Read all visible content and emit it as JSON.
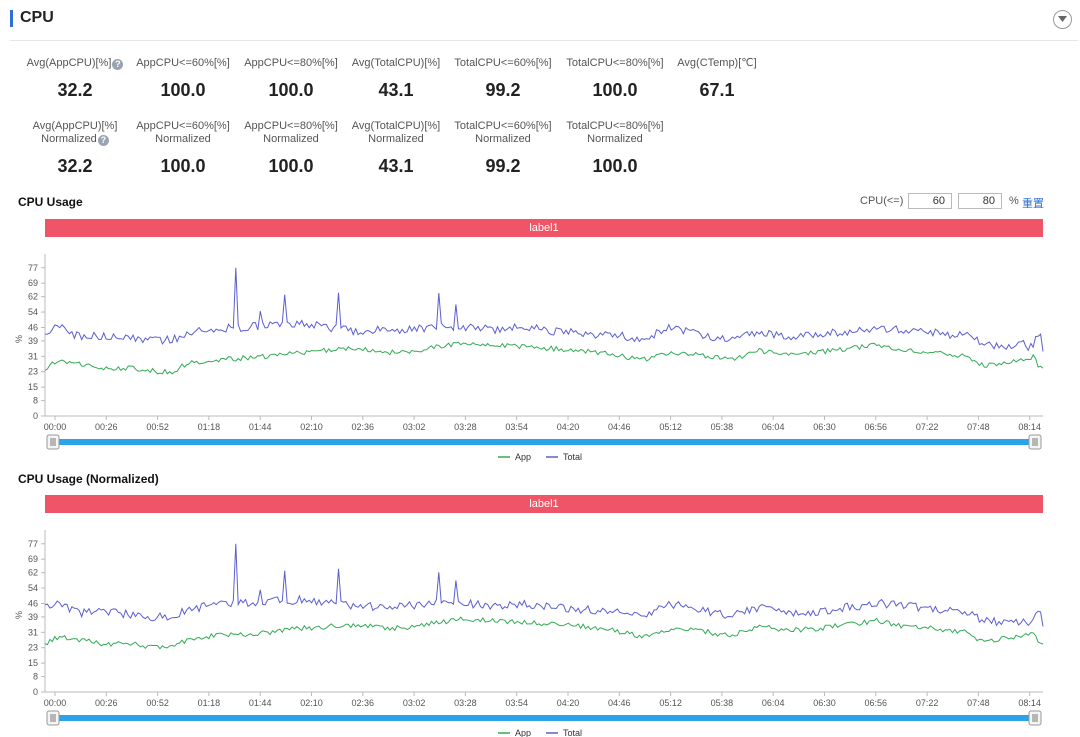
{
  "header": {
    "title": "CPU"
  },
  "stats_row1": [
    {
      "label": "Avg(AppCPU)[%]",
      "help": true,
      "value": "32.2"
    },
    {
      "label": "AppCPU<=60%[%]",
      "value": "100.0"
    },
    {
      "label": "AppCPU<=80%[%]",
      "value": "100.0"
    },
    {
      "label": "Avg(TotalCPU)[%]",
      "value": "43.1"
    },
    {
      "label": "TotalCPU<=60%[%]",
      "value": "99.2"
    },
    {
      "label": "TotalCPU<=80%[%]",
      "value": "100.0"
    },
    {
      "label": "Avg(CTemp)[℃]",
      "value": "67.1"
    }
  ],
  "stats_row2": [
    {
      "label": "Avg(AppCPU)[%]",
      "label2": "Normalized",
      "help": true,
      "value": "32.2"
    },
    {
      "label": "AppCPU<=60%[%]",
      "label2": "Normalized",
      "value": "100.0"
    },
    {
      "label": "AppCPU<=80%[%]",
      "label2": "Normalized",
      "value": "100.0"
    },
    {
      "label": "Avg(TotalCPU)[%]",
      "label2": "Normalized",
      "value": "43.1"
    },
    {
      "label": "TotalCPU<=60%[%]",
      "label2": "Normalized",
      "value": "99.2"
    },
    {
      "label": "TotalCPU<=80%[%]",
      "label2": "Normalized",
      "value": "100.0"
    }
  ],
  "help_glyph": "?",
  "threshold": {
    "label": "CPU(<=)",
    "value1": "60",
    "value2": "80",
    "unit": "%",
    "reset_label": "重置"
  },
  "colors": {
    "app": "#33aa55",
    "total": "#5a5fcf",
    "band": "#ef5566",
    "slider": "#2aa3e8",
    "accent": "#2d6fd6"
  },
  "chart_data": [
    {
      "type": "line",
      "title": "CPU Usage",
      "band_label": "label1",
      "ylabel": "%",
      "ylim": [
        0,
        80
      ],
      "y_ticks": [
        0,
        8,
        15,
        23,
        31,
        39,
        46,
        54,
        62,
        69,
        77
      ],
      "x_ticks": [
        "00:00",
        "00:26",
        "00:52",
        "01:18",
        "01:44",
        "02:10",
        "02:36",
        "03:02",
        "03:28",
        "03:54",
        "04:20",
        "04:46",
        "05:12",
        "05:38",
        "06:04",
        "06:30",
        "06:56",
        "07:22",
        "07:48",
        "08:14"
      ],
      "x_range_seconds": [
        0,
        510
      ],
      "legend": [
        "App",
        "Total"
      ],
      "series": [
        {
          "name": "App",
          "x": [
            0,
            8,
            18,
            30,
            44,
            58,
            66,
            72,
            85,
            100,
            115,
            130,
            145,
            160,
            175,
            190,
            200,
            215,
            230,
            245,
            260,
            275,
            290,
            305,
            320,
            335,
            350,
            365,
            380,
            395,
            410,
            425,
            440,
            455,
            470,
            480,
            490,
            500,
            502,
            505,
            508,
            510
          ],
          "values": [
            25,
            29,
            27,
            25,
            25,
            23,
            23,
            27,
            29,
            30,
            31,
            33,
            34,
            35,
            33,
            34,
            36,
            38,
            37,
            36,
            35,
            34,
            32,
            29,
            33,
            32,
            29,
            34,
            32,
            33,
            35,
            37,
            34,
            33,
            31,
            26,
            28,
            29,
            30,
            31,
            25,
            26
          ]
        },
        {
          "name": "Total",
          "x": [
            0,
            8,
            18,
            30,
            44,
            58,
            66,
            72,
            85,
            100,
            115,
            130,
            145,
            160,
            175,
            190,
            200,
            215,
            230,
            245,
            260,
            275,
            290,
            305,
            320,
            335,
            350,
            365,
            380,
            395,
            410,
            425,
            440,
            455,
            470,
            480,
            490,
            500,
            502,
            505,
            508,
            510
          ],
          "values": [
            44,
            46,
            41,
            42,
            40,
            39,
            40,
            43,
            45,
            46,
            47,
            48,
            46,
            44,
            45,
            45,
            47,
            46,
            45,
            46,
            44,
            43,
            42,
            40,
            46,
            42,
            40,
            44,
            41,
            42,
            44,
            46,
            45,
            43,
            42,
            37,
            36,
            37,
            36,
            37,
            44,
            35
          ]
        }
      ]
    },
    {
      "type": "line",
      "title": "CPU Usage (Normalized)",
      "band_label": "label1",
      "ylabel": "%",
      "ylim": [
        0,
        80
      ],
      "y_ticks": [
        0,
        8,
        15,
        23,
        31,
        39,
        46,
        54,
        62,
        69,
        77
      ],
      "x_ticks": [
        "00:00",
        "00:26",
        "00:52",
        "01:18",
        "01:44",
        "02:10",
        "02:36",
        "03:02",
        "03:28",
        "03:54",
        "04:20",
        "04:46",
        "05:12",
        "05:38",
        "06:04",
        "06:30",
        "06:56",
        "07:22",
        "07:48",
        "08:14"
      ],
      "x_range_seconds": [
        0,
        510
      ],
      "legend": [
        "App",
        "Total"
      ],
      "series": [
        {
          "name": "App",
          "x": [
            0,
            8,
            18,
            30,
            44,
            58,
            66,
            72,
            85,
            100,
            115,
            130,
            145,
            160,
            175,
            190,
            200,
            215,
            230,
            245,
            260,
            275,
            290,
            305,
            320,
            335,
            350,
            365,
            380,
            395,
            410,
            425,
            440,
            455,
            470,
            480,
            490,
            500,
            502,
            505,
            508,
            510
          ],
          "values": [
            25,
            29,
            27,
            25,
            25,
            23,
            23,
            27,
            29,
            30,
            31,
            33,
            34,
            35,
            33,
            34,
            36,
            38,
            37,
            36,
            35,
            34,
            32,
            29,
            33,
            32,
            29,
            34,
            32,
            33,
            35,
            37,
            34,
            33,
            31,
            26,
            28,
            29,
            30,
            31,
            25,
            26
          ]
        },
        {
          "name": "Total",
          "x": [
            0,
            8,
            18,
            30,
            44,
            58,
            66,
            72,
            85,
            100,
            115,
            130,
            145,
            160,
            175,
            190,
            200,
            215,
            230,
            245,
            260,
            275,
            290,
            305,
            320,
            335,
            350,
            365,
            380,
            395,
            410,
            425,
            440,
            455,
            470,
            480,
            490,
            500,
            502,
            505,
            508,
            510
          ],
          "values": [
            44,
            46,
            41,
            42,
            40,
            39,
            40,
            43,
            45,
            46,
            47,
            48,
            46,
            44,
            45,
            45,
            47,
            46,
            45,
            46,
            44,
            43,
            42,
            40,
            46,
            42,
            40,
            44,
            41,
            42,
            44,
            46,
            45,
            43,
            42,
            37,
            36,
            37,
            36,
            37,
            44,
            35
          ]
        }
      ]
    }
  ]
}
